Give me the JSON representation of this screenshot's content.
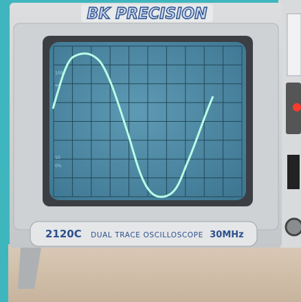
{
  "brand": "BK PRECISION",
  "label": {
    "model": "2120C",
    "description": "DUAL TRACE OSCILLOSCOPE",
    "bandwidth": "30MHz"
  },
  "screen": {
    "markers": [
      "100",
      "90",
      "10",
      "0%"
    ]
  }
}
